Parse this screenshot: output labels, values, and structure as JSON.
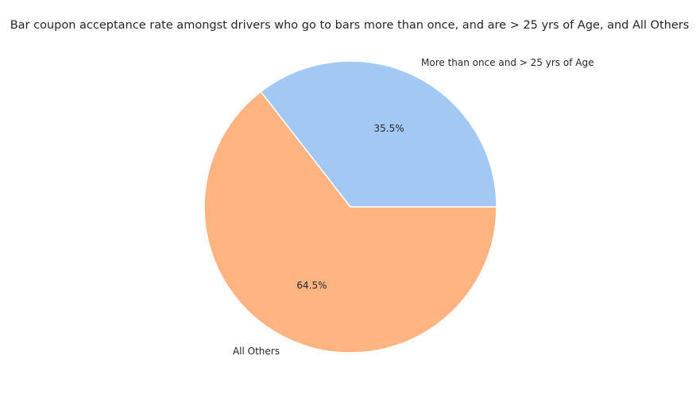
{
  "chart_data": {
    "type": "pie",
    "title": "Bar coupon acceptance rate amongst drivers who go to bars more than once, and are > 25 yrs of Age, and All Others",
    "slices": [
      {
        "label": "More than once and > 25 yrs of Age",
        "value": 35.5,
        "pct_label": "35.5%",
        "color": "#a1c9f4"
      },
      {
        "label": "All Others",
        "value": 64.5,
        "pct_label": "64.5%",
        "color": "#ffb482"
      }
    ],
    "start_angle_deg": 0,
    "direction": "counterclockwise",
    "edge_color": "#ffffff"
  }
}
